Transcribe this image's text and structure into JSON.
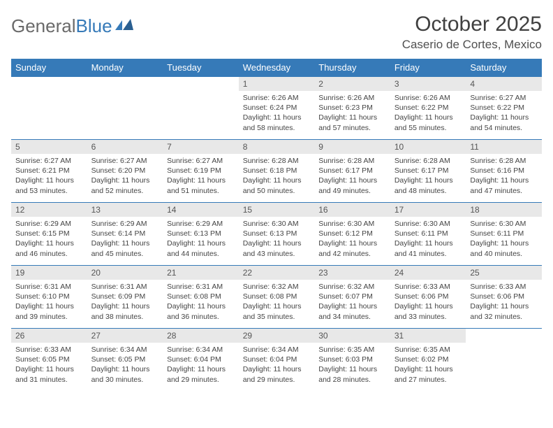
{
  "brand": {
    "text_general": "General",
    "text_blue": "Blue"
  },
  "title": "October 2025",
  "location": "Caserio de Cortes, Mexico",
  "colors": {
    "header_bg": "#367ab8",
    "header_text": "#ffffff",
    "daynum_bg": "#e8e8e8",
    "border": "#367ab8",
    "text": "#444444"
  },
  "day_headers": [
    "Sunday",
    "Monday",
    "Tuesday",
    "Wednesday",
    "Thursday",
    "Friday",
    "Saturday"
  ],
  "weeks": [
    [
      {
        "empty": true
      },
      {
        "empty": true
      },
      {
        "empty": true
      },
      {
        "num": "1",
        "sunrise": "6:26 AM",
        "sunset": "6:24 PM",
        "daylight": "11 hours and 58 minutes."
      },
      {
        "num": "2",
        "sunrise": "6:26 AM",
        "sunset": "6:23 PM",
        "daylight": "11 hours and 57 minutes."
      },
      {
        "num": "3",
        "sunrise": "6:26 AM",
        "sunset": "6:22 PM",
        "daylight": "11 hours and 55 minutes."
      },
      {
        "num": "4",
        "sunrise": "6:27 AM",
        "sunset": "6:22 PM",
        "daylight": "11 hours and 54 minutes."
      }
    ],
    [
      {
        "num": "5",
        "sunrise": "6:27 AM",
        "sunset": "6:21 PM",
        "daylight": "11 hours and 53 minutes."
      },
      {
        "num": "6",
        "sunrise": "6:27 AM",
        "sunset": "6:20 PM",
        "daylight": "11 hours and 52 minutes."
      },
      {
        "num": "7",
        "sunrise": "6:27 AM",
        "sunset": "6:19 PM",
        "daylight": "11 hours and 51 minutes."
      },
      {
        "num": "8",
        "sunrise": "6:28 AM",
        "sunset": "6:18 PM",
        "daylight": "11 hours and 50 minutes."
      },
      {
        "num": "9",
        "sunrise": "6:28 AM",
        "sunset": "6:17 PM",
        "daylight": "11 hours and 49 minutes."
      },
      {
        "num": "10",
        "sunrise": "6:28 AM",
        "sunset": "6:17 PM",
        "daylight": "11 hours and 48 minutes."
      },
      {
        "num": "11",
        "sunrise": "6:28 AM",
        "sunset": "6:16 PM",
        "daylight": "11 hours and 47 minutes."
      }
    ],
    [
      {
        "num": "12",
        "sunrise": "6:29 AM",
        "sunset": "6:15 PM",
        "daylight": "11 hours and 46 minutes."
      },
      {
        "num": "13",
        "sunrise": "6:29 AM",
        "sunset": "6:14 PM",
        "daylight": "11 hours and 45 minutes."
      },
      {
        "num": "14",
        "sunrise": "6:29 AM",
        "sunset": "6:13 PM",
        "daylight": "11 hours and 44 minutes."
      },
      {
        "num": "15",
        "sunrise": "6:30 AM",
        "sunset": "6:13 PM",
        "daylight": "11 hours and 43 minutes."
      },
      {
        "num": "16",
        "sunrise": "6:30 AM",
        "sunset": "6:12 PM",
        "daylight": "11 hours and 42 minutes."
      },
      {
        "num": "17",
        "sunrise": "6:30 AM",
        "sunset": "6:11 PM",
        "daylight": "11 hours and 41 minutes."
      },
      {
        "num": "18",
        "sunrise": "6:30 AM",
        "sunset": "6:11 PM",
        "daylight": "11 hours and 40 minutes."
      }
    ],
    [
      {
        "num": "19",
        "sunrise": "6:31 AM",
        "sunset": "6:10 PM",
        "daylight": "11 hours and 39 minutes."
      },
      {
        "num": "20",
        "sunrise": "6:31 AM",
        "sunset": "6:09 PM",
        "daylight": "11 hours and 38 minutes."
      },
      {
        "num": "21",
        "sunrise": "6:31 AM",
        "sunset": "6:08 PM",
        "daylight": "11 hours and 36 minutes."
      },
      {
        "num": "22",
        "sunrise": "6:32 AM",
        "sunset": "6:08 PM",
        "daylight": "11 hours and 35 minutes."
      },
      {
        "num": "23",
        "sunrise": "6:32 AM",
        "sunset": "6:07 PM",
        "daylight": "11 hours and 34 minutes."
      },
      {
        "num": "24",
        "sunrise": "6:33 AM",
        "sunset": "6:06 PM",
        "daylight": "11 hours and 33 minutes."
      },
      {
        "num": "25",
        "sunrise": "6:33 AM",
        "sunset": "6:06 PM",
        "daylight": "11 hours and 32 minutes."
      }
    ],
    [
      {
        "num": "26",
        "sunrise": "6:33 AM",
        "sunset": "6:05 PM",
        "daylight": "11 hours and 31 minutes."
      },
      {
        "num": "27",
        "sunrise": "6:34 AM",
        "sunset": "6:05 PM",
        "daylight": "11 hours and 30 minutes."
      },
      {
        "num": "28",
        "sunrise": "6:34 AM",
        "sunset": "6:04 PM",
        "daylight": "11 hours and 29 minutes."
      },
      {
        "num": "29",
        "sunrise": "6:34 AM",
        "sunset": "6:04 PM",
        "daylight": "11 hours and 29 minutes."
      },
      {
        "num": "30",
        "sunrise": "6:35 AM",
        "sunset": "6:03 PM",
        "daylight": "11 hours and 28 minutes."
      },
      {
        "num": "31",
        "sunrise": "6:35 AM",
        "sunset": "6:02 PM",
        "daylight": "11 hours and 27 minutes."
      },
      {
        "empty": true
      }
    ]
  ],
  "labels": {
    "sunrise": "Sunrise:",
    "sunset": "Sunset:",
    "daylight": "Daylight:"
  }
}
